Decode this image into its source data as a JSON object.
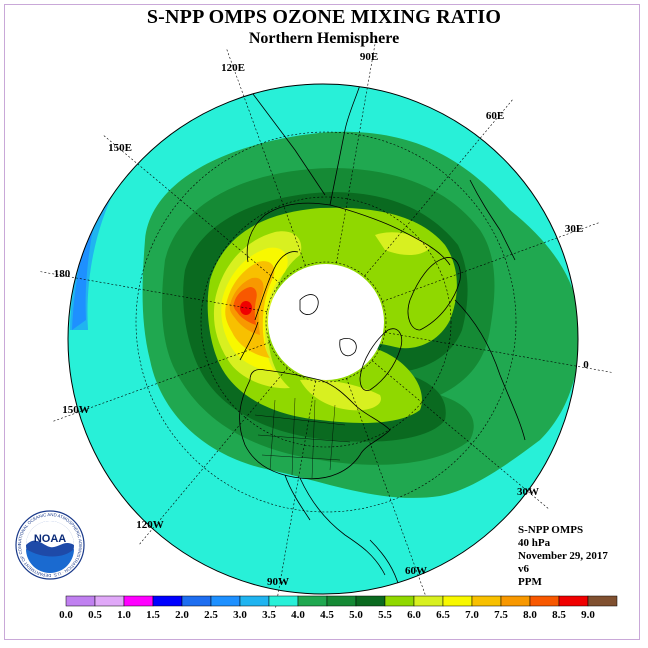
{
  "header": {
    "title": "S-NPP OMPS OZONE MIXING RATIO",
    "subtitle": "Northern Hemisphere"
  },
  "longitude_labels": [
    "90E",
    "60E",
    "30E",
    "0",
    "30W",
    "60W",
    "90W",
    "120W",
    "150W",
    "180",
    "150E",
    "120E"
  ],
  "info": {
    "instrument": "S-NPP OMPS",
    "level": "40 hPa",
    "date": "November 29, 2017",
    "version": "v6",
    "units": "PPM"
  },
  "logo": {
    "text": "NOAA",
    "ring_text": "NATIONAL OCEANIC AND ATMOSPHERIC ADMINISTRATION · U.S. DEPARTMENT OF COMMERCE"
  },
  "colorbar": {
    "ticks": [
      "0.0",
      "0.5",
      "1.0",
      "1.5",
      "2.0",
      "2.5",
      "3.0",
      "3.5",
      "4.0",
      "4.5",
      "5.0",
      "5.5",
      "6.0",
      "6.5",
      "7.0",
      "7.5",
      "8.0",
      "8.5",
      "9.0"
    ],
    "colors": [
      "#c080f0",
      "#e0a8f8",
      "#ff00ff",
      "#0000ff",
      "#1e6ef0",
      "#1e90ff",
      "#20b4f0",
      "#28f0d8",
      "#20a850",
      "#158a35",
      "#0a6a20",
      "#90d800",
      "#d8f020",
      "#f8f800",
      "#f8c000",
      "#f89800",
      "#f85800",
      "#f00000",
      "#805030"
    ]
  }
}
